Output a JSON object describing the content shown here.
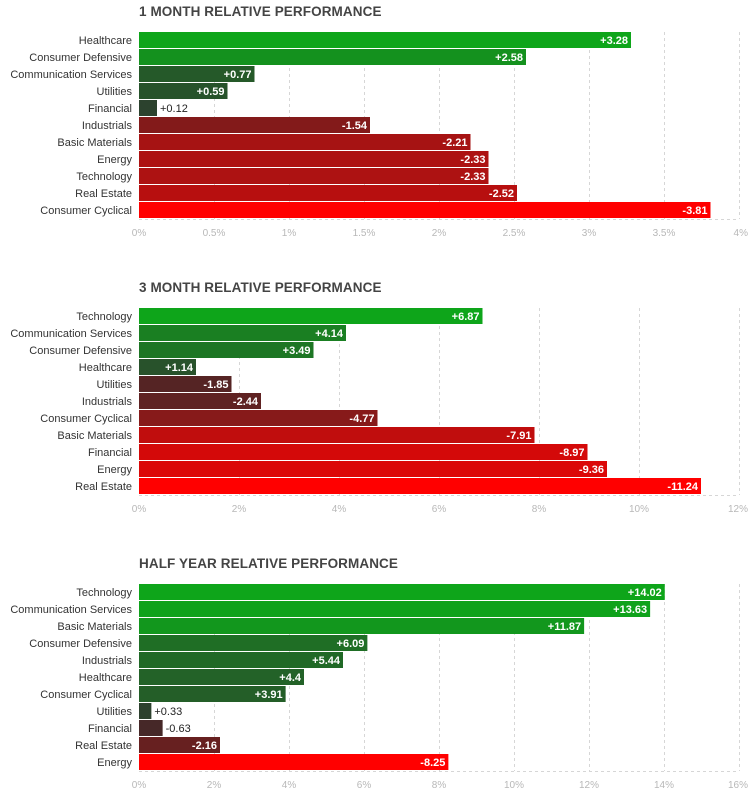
{
  "chart_data": [
    {
      "type": "bar",
      "orientation": "horizontal",
      "title": "1 MONTH RELATIVE PERFORMANCE",
      "xlim": [
        0,
        4
      ],
      "ticks": [
        0,
        0.5,
        1,
        1.5,
        2,
        2.5,
        3,
        3.5,
        4
      ],
      "tick_labels": [
        "0%",
        "0.5%",
        "1%",
        "1.5%",
        "2%",
        "2.5%",
        "3%",
        "3.5%",
        "4%"
      ],
      "categories": [
        "Healthcare",
        "Consumer Defensive",
        "Communication Services",
        "Utilities",
        "Financial",
        "Industrials",
        "Basic Materials",
        "Energy",
        "Technology",
        "Real Estate",
        "Consumer Cyclical"
      ],
      "values": [
        3.28,
        2.58,
        0.77,
        0.59,
        0.12,
        -1.54,
        -2.21,
        -2.33,
        -2.33,
        -2.52,
        -3.81
      ],
      "value_labels": [
        "+3.28",
        "+2.58",
        "+0.77",
        "+0.59",
        "+0.12",
        "-1.54",
        "-2.21",
        "-2.33",
        "-2.33",
        "-2.52",
        "-3.81"
      ]
    },
    {
      "type": "bar",
      "orientation": "horizontal",
      "title": "3 MONTH RELATIVE PERFORMANCE",
      "xlim": [
        0,
        12
      ],
      "ticks": [
        0,
        2,
        4,
        6,
        8,
        10,
        12
      ],
      "tick_labels": [
        "0%",
        "2%",
        "4%",
        "6%",
        "8%",
        "10%",
        "12%"
      ],
      "categories": [
        "Technology",
        "Communication Services",
        "Consumer Defensive",
        "Healthcare",
        "Utilities",
        "Industrials",
        "Consumer Cyclical",
        "Basic Materials",
        "Financial",
        "Energy",
        "Real Estate"
      ],
      "values": [
        6.87,
        4.14,
        3.49,
        1.14,
        -1.85,
        -2.44,
        -4.77,
        -7.91,
        -8.97,
        -9.36,
        -11.24
      ],
      "value_labels": [
        "+6.87",
        "+4.14",
        "+3.49",
        "+1.14",
        "-1.85",
        "-2.44",
        "-4.77",
        "-7.91",
        "-8.97",
        "-9.36",
        "-11.24"
      ]
    },
    {
      "type": "bar",
      "orientation": "horizontal",
      "title": "HALF YEAR RELATIVE PERFORMANCE",
      "xlim": [
        0,
        16
      ],
      "ticks": [
        0,
        2,
        4,
        6,
        8,
        10,
        12,
        14,
        16
      ],
      "tick_labels": [
        "0%",
        "2%",
        "4%",
        "6%",
        "8%",
        "10%",
        "12%",
        "14%",
        "16%"
      ],
      "categories": [
        "Technology",
        "Communication Services",
        "Basic Materials",
        "Consumer Defensive",
        "Industrials",
        "Healthcare",
        "Consumer Cyclical",
        "Utilities",
        "Financial",
        "Real Estate",
        "Energy"
      ],
      "values": [
        14.02,
        13.63,
        11.87,
        6.09,
        5.44,
        4.4,
        3.91,
        0.33,
        -0.63,
        -2.16,
        -8.25
      ],
      "value_labels": [
        "+14.02",
        "+13.63",
        "+11.87",
        "+6.09",
        "+5.44",
        "+4.4",
        "+3.91",
        "+0.33",
        "-0.63",
        "-2.16",
        "-8.25"
      ]
    }
  ],
  "colors": {
    "title": "#444444",
    "category_label": "#333333",
    "tick_label": "#b8b8b8",
    "grid": "#d6d6d6",
    "positive_strong": "#0ea51a",
    "positive_weak": "#2e3d2f",
    "negative_weak": "#3a2a2a",
    "negative_strong": "#ff0000",
    "value_text_inside": "#ffffff",
    "value_text_outside": "#222222"
  }
}
